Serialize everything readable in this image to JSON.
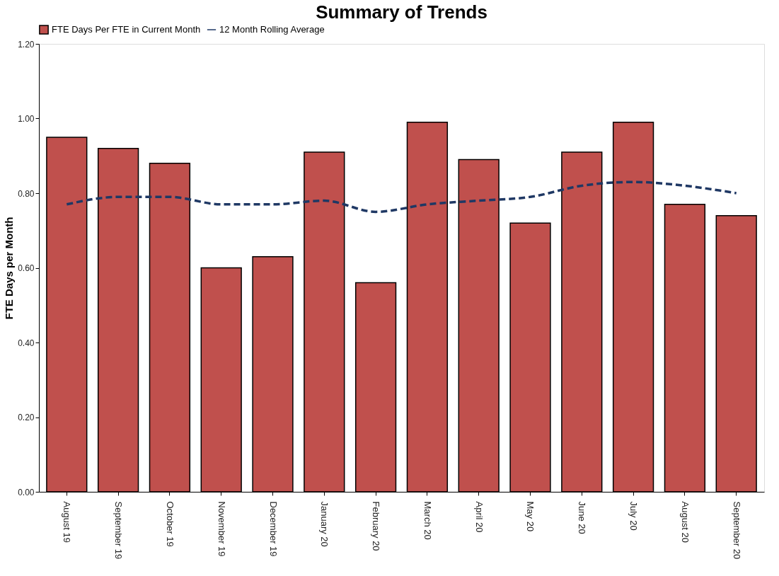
{
  "chart_data": {
    "type": "bar",
    "title": "Summary of Trends",
    "ylabel": "FTE Days per Month",
    "categories": [
      "August 19",
      "September 19",
      "October 19",
      "November 19",
      "December 19",
      "January 20",
      "February 20",
      "March 20",
      "April 20",
      "May 20",
      "June 20",
      "July 20",
      "August 20",
      "September 20"
    ],
    "series": [
      {
        "name": "FTE Days Per FTE in Current Month",
        "color": "#c0504d",
        "values": [
          0.95,
          0.92,
          0.88,
          0.6,
          0.63,
          0.91,
          0.56,
          0.99,
          0.89,
          0.72,
          0.91,
          0.99,
          0.77,
          0.74
        ]
      },
      {
        "name": "12 Month Rolling Average",
        "type": "line",
        "color": "#1f3864",
        "line_style": "dashed",
        "values": [
          0.77,
          0.79,
          0.79,
          0.77,
          0.77,
          0.78,
          0.75,
          0.77,
          0.78,
          0.79,
          0.82,
          0.83,
          0.82,
          0.8
        ]
      }
    ],
    "ylim": [
      0,
      1.2
    ],
    "yticks": [
      {
        "value": 0,
        "label": "0.00"
      },
      {
        "value": 0.2,
        "label": "0.20"
      },
      {
        "value": 0.4,
        "label": "0.40"
      },
      {
        "value": 0.6,
        "label": "0.60"
      },
      {
        "value": 0.8,
        "label": "0.80"
      },
      {
        "value": 1.0,
        "label": "1.00"
      },
      {
        "value": 1.2,
        "label": "1.20"
      }
    ],
    "grid": false,
    "legend": "top",
    "marker": "none"
  }
}
